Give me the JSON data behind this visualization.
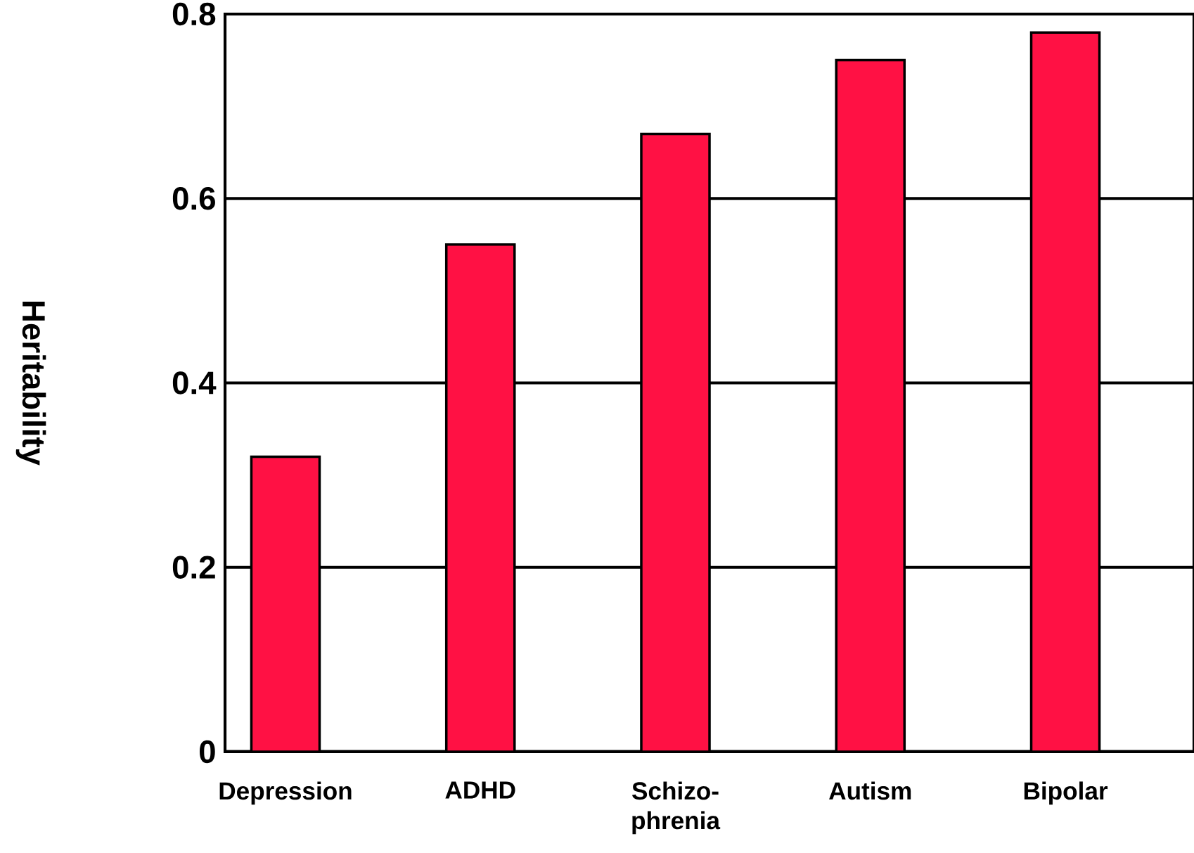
{
  "chart_data": {
    "type": "bar",
    "ylabel": "Heritability",
    "categories": [
      "Depression",
      "ADHD",
      "Schizo-phrenia",
      "Autism",
      "Bipolar"
    ],
    "values": [
      0.32,
      0.55,
      0.67,
      0.75,
      0.78
    ],
    "color": "#ff1144",
    "ylim": [
      0,
      0.8
    ],
    "yticks": [
      0,
      0.2,
      0.4,
      0.6,
      0.8
    ],
    "grid": "y"
  }
}
